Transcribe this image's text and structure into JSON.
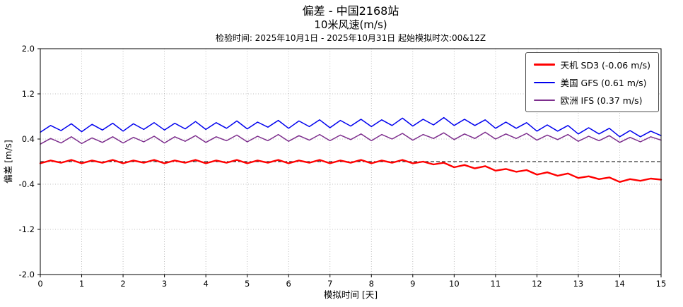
{
  "header": {
    "title": "偏差 - 中国2168站",
    "subtitle": "10米风速(m/s)",
    "info": "检验时间: 2025年10月1日 - 2025年10月31日 起始模拟时次:00&12Z"
  },
  "chart_data": {
    "type": "line",
    "title": "偏差 - 中国2168站",
    "subtitle": "10米风速(m/s)",
    "verification_note": "检验时间: 2025年10月1日 - 2025年10月31日 起始模拟时次:00&12Z",
    "xlabel": "模拟时间 [天]",
    "ylabel": "偏差 [m/s]",
    "xlim": [
      0,
      15
    ],
    "ylim": [
      -2.0,
      2.0
    ],
    "xticks": [
      0,
      1,
      2,
      3,
      4,
      5,
      6,
      7,
      8,
      9,
      10,
      11,
      12,
      13,
      14,
      15
    ],
    "yticks": [
      -2.0,
      -1.2,
      -0.4,
      0.4,
      1.2,
      2.0
    ],
    "grid": true,
    "grid_style": "dotted",
    "grid_color": "#b0b0b0",
    "zero_line": {
      "value": 0.0,
      "style": "dashed",
      "color": "#000000"
    },
    "legend_position": "top-right",
    "x_start": 0,
    "x_step": 0.25,
    "series": [
      {
        "name": "天机 SD3 (-0.06 m/s)",
        "mean_bias": -0.06,
        "color": "#ff0000",
        "width": 2.4,
        "values": [
          -0.03,
          0.02,
          -0.02,
          0.03,
          -0.03,
          0.02,
          -0.02,
          0.03,
          -0.03,
          0.02,
          -0.02,
          0.03,
          -0.03,
          0.02,
          -0.02,
          0.03,
          -0.03,
          0.02,
          -0.02,
          0.03,
          -0.03,
          0.02,
          -0.02,
          0.03,
          -0.03,
          0.02,
          -0.02,
          0.03,
          -0.03,
          0.02,
          -0.02,
          0.03,
          -0.03,
          0.02,
          -0.02,
          0.03,
          -0.03,
          0.0,
          -0.05,
          -0.02,
          -0.1,
          -0.06,
          -0.12,
          -0.08,
          -0.16,
          -0.13,
          -0.18,
          -0.15,
          -0.23,
          -0.19,
          -0.25,
          -0.21,
          -0.29,
          -0.26,
          -0.31,
          -0.28,
          -0.36,
          -0.31,
          -0.34,
          -0.3,
          -0.32
        ]
      },
      {
        "name": "美国 GFS (0.61 m/s)",
        "mean_bias": 0.61,
        "color": "#0000ee",
        "width": 1.5,
        "values": [
          0.52,
          0.64,
          0.55,
          0.67,
          0.53,
          0.66,
          0.56,
          0.68,
          0.54,
          0.67,
          0.57,
          0.69,
          0.56,
          0.68,
          0.58,
          0.71,
          0.57,
          0.69,
          0.59,
          0.72,
          0.58,
          0.7,
          0.61,
          0.73,
          0.59,
          0.72,
          0.62,
          0.74,
          0.6,
          0.73,
          0.63,
          0.75,
          0.62,
          0.74,
          0.64,
          0.77,
          0.63,
          0.75,
          0.65,
          0.78,
          0.64,
          0.75,
          0.64,
          0.74,
          0.59,
          0.7,
          0.59,
          0.69,
          0.54,
          0.65,
          0.54,
          0.64,
          0.49,
          0.6,
          0.49,
          0.59,
          0.44,
          0.55,
          0.44,
          0.54,
          0.46
        ]
      },
      {
        "name": "欧洲 IFS (0.37 m/s)",
        "mean_bias": 0.37,
        "color": "#7d2e8d",
        "width": 1.5,
        "values": [
          0.31,
          0.41,
          0.33,
          0.44,
          0.32,
          0.42,
          0.34,
          0.44,
          0.33,
          0.43,
          0.35,
          0.45,
          0.33,
          0.44,
          0.36,
          0.46,
          0.34,
          0.44,
          0.37,
          0.47,
          0.35,
          0.45,
          0.37,
          0.48,
          0.36,
          0.46,
          0.38,
          0.48,
          0.37,
          0.47,
          0.39,
          0.49,
          0.37,
          0.48,
          0.4,
          0.5,
          0.38,
          0.48,
          0.41,
          0.51,
          0.39,
          0.49,
          0.41,
          0.52,
          0.4,
          0.49,
          0.41,
          0.5,
          0.38,
          0.47,
          0.39,
          0.48,
          0.36,
          0.45,
          0.37,
          0.46,
          0.34,
          0.43,
          0.35,
          0.44,
          0.38
        ]
      }
    ]
  }
}
